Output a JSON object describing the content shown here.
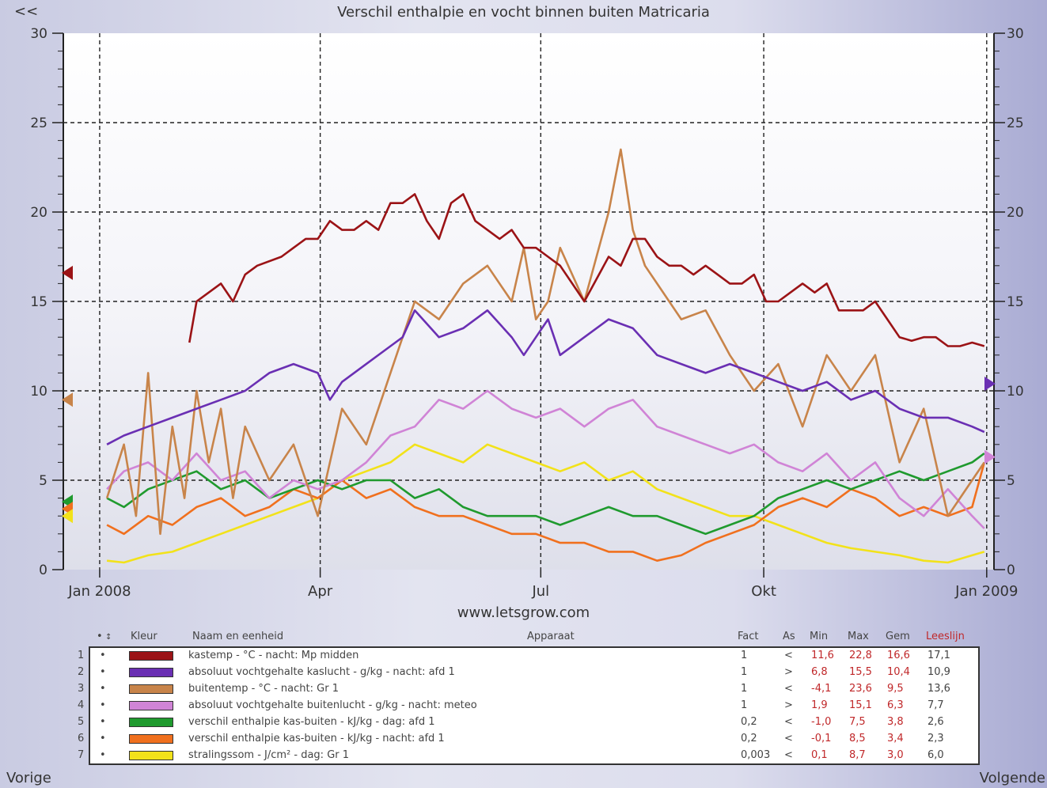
{
  "nav": {
    "back": "<<",
    "prev": "Vorige",
    "next": "Volgende"
  },
  "site": "www.letsgrow.com",
  "legend": {
    "headers": {
      "dot": "•",
      "arrow": "↕",
      "color": "Kleur",
      "name": "Naam en eenheid",
      "device": "Apparaat",
      "fact": "Fact",
      "axis": "As",
      "min": "Min",
      "max": "Max",
      "avg": "Gem",
      "read": "Leeslijn"
    },
    "rows": [
      {
        "num": "1",
        "dot": "•",
        "color": "#9b1316",
        "name": "kastemp - °C - nacht: Mp midden",
        "fact": "1",
        "axis": "<",
        "min": "11,6",
        "max": "22,8",
        "avg": "16,6",
        "read": "17,1"
      },
      {
        "num": "2",
        "dot": "•",
        "color": "#6a2fb3",
        "name": "absoluut vochtgehalte kaslucht - g/kg - nacht: afd 1",
        "fact": "1",
        "axis": ">",
        "min": "6,8",
        "max": "15,5",
        "avg": "10,4",
        "read": "10,9"
      },
      {
        "num": "3",
        "dot": "•",
        "color": "#c8844a",
        "name": "buitentemp - °C - nacht: Gr 1",
        "fact": "1",
        "axis": "<",
        "min": "-4,1",
        "max": "23,6",
        "avg": "9,5",
        "read": "13,6"
      },
      {
        "num": "4",
        "dot": "•",
        "color": "#d084d6",
        "name": "absoluut vochtgehalte buitenlucht - g/kg - nacht: meteo",
        "fact": "1",
        "axis": ">",
        "min": "1,9",
        "max": "15,1",
        "avg": "6,3",
        "read": "7,7"
      },
      {
        "num": "5",
        "dot": "•",
        "color": "#1f9a2e",
        "name": "verschil enthalpie kas-buiten - kJ/kg - dag: afd 1",
        "fact": "0,2",
        "axis": "<",
        "min": "-1,0",
        "max": "7,5",
        "avg": "3,8",
        "read": "2,6"
      },
      {
        "num": "6",
        "dot": "•",
        "color": "#f0701e",
        "name": "verschil enthalpie kas-buiten - kJ/kg - nacht: afd 1",
        "fact": "0,2",
        "axis": "<",
        "min": "-0,1",
        "max": "8,5",
        "avg": "3,4",
        "read": "2,3"
      },
      {
        "num": "7",
        "dot": "•",
        "color": "#f2e21a",
        "name": "stralingssom - J/cm² - dag: Gr 1",
        "fact": "0,003",
        "axis": "<",
        "min": "0,1",
        "max": "8,7",
        "avg": "3,0",
        "read": "6,0"
      }
    ]
  },
  "chart_data": {
    "type": "line",
    "title": "Verschil enthalpie en vocht binnen buiten Matricaria",
    "x_ticks": [
      "Jan 2008",
      "Apr",
      "Jul",
      "Okt",
      "Jan 2009"
    ],
    "x_tick_days": [
      0,
      91,
      182,
      274,
      366
    ],
    "x_range_days": [
      -15,
      369
    ],
    "ylim": [
      0,
      30
    ],
    "y_ticks": [
      0,
      5,
      10,
      15,
      20,
      25,
      30
    ],
    "grid": true,
    "markers": {
      "left": [
        16.6,
        9.5,
        3.8,
        3.4,
        3.0
      ],
      "right": [
        10.4,
        6.3
      ]
    },
    "series": [
      {
        "name": "kastemp - °C - nacht: Mp midden",
        "color": "#9b1316",
        "x": [
          37,
          40,
          50,
          55,
          60,
          65,
          75,
          80,
          85,
          90,
          95,
          100,
          105,
          110,
          115,
          120,
          125,
          130,
          135,
          140,
          145,
          150,
          155,
          160,
          165,
          170,
          175,
          180,
          185,
          190,
          195,
          200,
          210,
          215,
          220,
          225,
          230,
          235,
          240,
          245,
          250,
          255,
          260,
          265,
          270,
          275,
          280,
          285,
          290,
          295,
          300,
          305,
          310,
          315,
          320,
          325,
          330,
          335,
          340,
          345,
          350,
          355,
          360,
          365
        ],
        "values": [
          12.7,
          15.0,
          16.0,
          15.0,
          16.5,
          17.0,
          17.5,
          18.0,
          18.5,
          18.5,
          19.5,
          19.0,
          19.0,
          19.5,
          19.0,
          20.5,
          20.5,
          21.0,
          19.5,
          18.5,
          20.5,
          21.0,
          19.5,
          19.0,
          18.5,
          19.0,
          18.0,
          18.0,
          17.5,
          17.0,
          16.0,
          15.0,
          17.5,
          17.0,
          18.5,
          18.5,
          17.5,
          17.0,
          17.0,
          16.5,
          17.0,
          16.5,
          16.0,
          16.0,
          16.5,
          15.0,
          15.0,
          15.5,
          16.0,
          15.5,
          16.0,
          14.5,
          14.5,
          14.5,
          15.0,
          14.0,
          13.0,
          12.8,
          13.0,
          13.0,
          12.5,
          12.5,
          12.7,
          12.5
        ]
      },
      {
        "name": "absoluut vochtgehalte kaslucht - g/kg - nacht: afd 1",
        "color": "#6a2fb3",
        "x": [
          3,
          10,
          20,
          30,
          40,
          50,
          60,
          70,
          80,
          90,
          95,
          100,
          110,
          120,
          125,
          130,
          140,
          150,
          160,
          170,
          175,
          180,
          185,
          190,
          200,
          210,
          220,
          230,
          240,
          250,
          260,
          270,
          280,
          290,
          300,
          310,
          320,
          330,
          340,
          350,
          360,
          365
        ],
        "values": [
          7.0,
          7.5,
          8.0,
          8.5,
          9.0,
          9.5,
          10.0,
          11.0,
          11.5,
          11.0,
          9.5,
          10.5,
          11.5,
          12.5,
          13.0,
          14.5,
          13.0,
          13.5,
          14.5,
          13.0,
          12.0,
          13.0,
          14.0,
          12.0,
          13.0,
          14.0,
          13.5,
          12.0,
          11.5,
          11.0,
          11.5,
          11.0,
          10.5,
          10.0,
          10.5,
          9.5,
          10.0,
          9.0,
          8.5,
          8.5,
          8.0,
          7.7
        ]
      },
      {
        "name": "buitentemp - °C - nacht: Gr 1",
        "color": "#c8844a",
        "x": [
          3,
          10,
          15,
          20,
          25,
          30,
          35,
          40,
          45,
          50,
          55,
          60,
          70,
          80,
          90,
          100,
          110,
          120,
          130,
          140,
          150,
          160,
          170,
          175,
          180,
          185,
          190,
          200,
          210,
          215,
          220,
          225,
          230,
          240,
          250,
          260,
          270,
          280,
          290,
          300,
          310,
          320,
          330,
          340,
          350,
          360,
          365
        ],
        "values": [
          4.0,
          7.0,
          3.0,
          11.0,
          2.0,
          8.0,
          4.0,
          10.0,
          6.0,
          9.0,
          4.0,
          8.0,
          5.0,
          7.0,
          3.0,
          9.0,
          7.0,
          11.0,
          15.0,
          14.0,
          16.0,
          17.0,
          15.0,
          18.0,
          14.0,
          15.0,
          18.0,
          15.0,
          20.0,
          23.5,
          19.0,
          17.0,
          16.0,
          14.0,
          14.5,
          12.0,
          10.0,
          11.5,
          8.0,
          12.0,
          10.0,
          12.0,
          6.0,
          9.0,
          3.0,
          5.0,
          6.0
        ]
      },
      {
        "name": "absoluut vochtgehalte buitenlucht - g/kg - nacht: meteo",
        "color": "#d084d6",
        "x": [
          3,
          10,
          20,
          30,
          40,
          50,
          60,
          70,
          80,
          90,
          100,
          110,
          120,
          130,
          140,
          150,
          160,
          170,
          180,
          190,
          200,
          210,
          220,
          230,
          240,
          250,
          260,
          270,
          280,
          290,
          300,
          310,
          320,
          330,
          340,
          350,
          360,
          365
        ],
        "values": [
          4.5,
          5.5,
          6.0,
          5.0,
          6.5,
          5.0,
          5.5,
          4.0,
          5.0,
          4.5,
          5.0,
          6.0,
          7.5,
          8.0,
          9.5,
          9.0,
          10.0,
          9.0,
          8.5,
          9.0,
          8.0,
          9.0,
          9.5,
          8.0,
          7.5,
          7.0,
          6.5,
          7.0,
          6.0,
          5.5,
          6.5,
          5.0,
          6.0,
          4.0,
          3.0,
          4.5,
          3.0,
          2.3
        ]
      },
      {
        "name": "verschil enthalpie kas-buiten - kJ/kg - dag: afd 1",
        "color": "#1f9a2e",
        "x": [
          3,
          10,
          20,
          30,
          40,
          50,
          60,
          70,
          80,
          90,
          100,
          110,
          120,
          130,
          140,
          150,
          160,
          170,
          180,
          190,
          200,
          210,
          220,
          230,
          240,
          250,
          260,
          270,
          280,
          290,
          300,
          310,
          320,
          330,
          340,
          350,
          360,
          365
        ],
        "values": [
          4.0,
          3.5,
          4.5,
          5.0,
          5.5,
          4.5,
          5.0,
          4.0,
          4.5,
          5.0,
          4.5,
          5.0,
          5.0,
          4.0,
          4.5,
          3.5,
          3.0,
          3.0,
          3.0,
          2.5,
          3.0,
          3.5,
          3.0,
          3.0,
          2.5,
          2.0,
          2.5,
          3.0,
          4.0,
          4.5,
          5.0,
          4.5,
          5.0,
          5.5,
          5.0,
          5.5,
          6.0,
          6.5
        ]
      },
      {
        "name": "verschil enthalpie kas-buiten - kJ/kg - nacht: afd 1",
        "color": "#f0701e",
        "x": [
          3,
          10,
          20,
          30,
          40,
          50,
          60,
          70,
          80,
          90,
          100,
          110,
          120,
          130,
          140,
          150,
          160,
          170,
          180,
          190,
          200,
          210,
          220,
          230,
          240,
          250,
          260,
          270,
          280,
          290,
          300,
          310,
          320,
          330,
          340,
          350,
          360,
          365
        ],
        "values": [
          2.5,
          2.0,
          3.0,
          2.5,
          3.5,
          4.0,
          3.0,
          3.5,
          4.5,
          4.0,
          5.0,
          4.0,
          4.5,
          3.5,
          3.0,
          3.0,
          2.5,
          2.0,
          2.0,
          1.5,
          1.5,
          1.0,
          1.0,
          0.5,
          0.8,
          1.5,
          2.0,
          2.5,
          3.5,
          4.0,
          3.5,
          4.5,
          4.0,
          3.0,
          3.5,
          3.0,
          3.5,
          6.0
        ]
      },
      {
        "name": "stralingssom - J/cm² - dag: Gr 1",
        "color": "#f2e21a",
        "x": [
          3,
          10,
          20,
          30,
          40,
          50,
          60,
          70,
          80,
          90,
          100,
          110,
          120,
          130,
          140,
          150,
          160,
          170,
          180,
          190,
          200,
          210,
          220,
          230,
          240,
          250,
          260,
          270,
          280,
          290,
          300,
          310,
          320,
          330,
          340,
          350,
          360,
          365
        ],
        "values": [
          0.5,
          0.4,
          0.8,
          1.0,
          1.5,
          2.0,
          2.5,
          3.0,
          3.5,
          4.0,
          5.0,
          5.5,
          6.0,
          7.0,
          6.5,
          6.0,
          7.0,
          6.5,
          6.0,
          5.5,
          6.0,
          5.0,
          5.5,
          4.5,
          4.0,
          3.5,
          3.0,
          3.0,
          2.5,
          2.0,
          1.5,
          1.2,
          1.0,
          0.8,
          0.5,
          0.4,
          0.8,
          1.0
        ]
      }
    ]
  }
}
